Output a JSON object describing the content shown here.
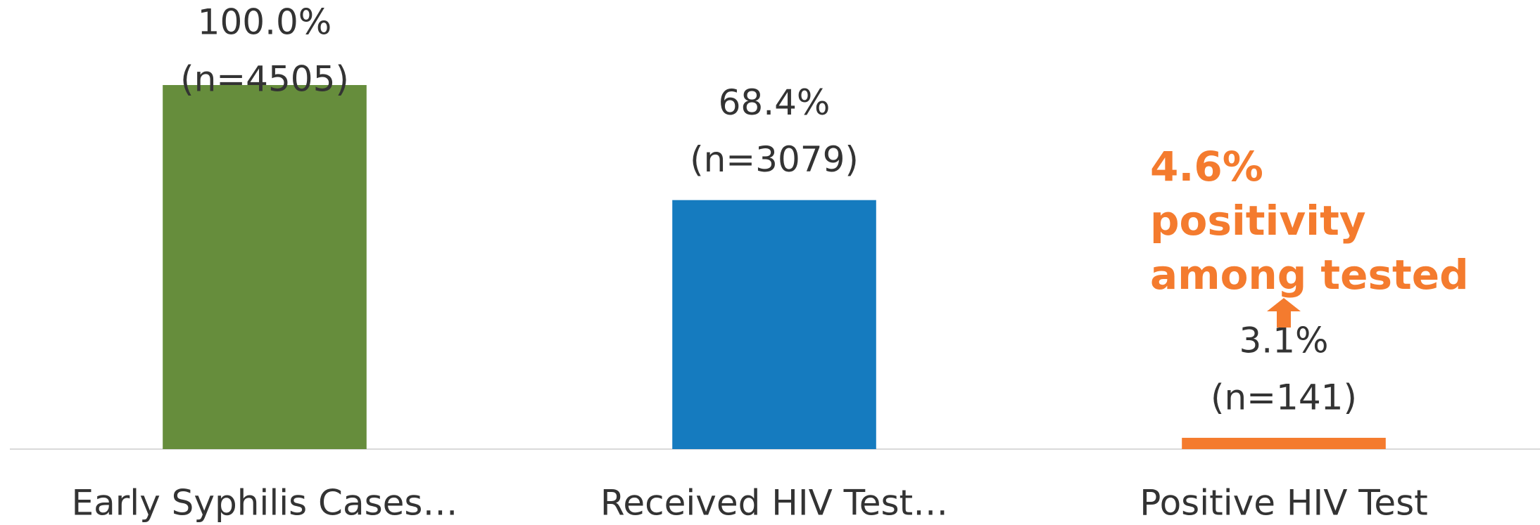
{
  "chart_data": {
    "type": "bar",
    "categories": [
      "Early Syphilis Cases…",
      "Received HIV Test…",
      "Positive HIV Test"
    ],
    "values": [
      100.0,
      68.4,
      3.1
    ],
    "value_labels": [
      "100.0%",
      "68.4%",
      "3.1%"
    ],
    "counts": [
      4505,
      3079,
      141
    ],
    "count_labels": [
      "(n=4505)",
      "(n=3079)",
      "(n=141)"
    ],
    "colors": [
      "#668d3c",
      "#157bbf",
      "#f47b2e"
    ],
    "ylim": [
      0,
      100
    ],
    "annotation": {
      "lines": [
        "4.6%",
        "positivity",
        "among tested"
      ],
      "color": "#f47b2e"
    }
  }
}
